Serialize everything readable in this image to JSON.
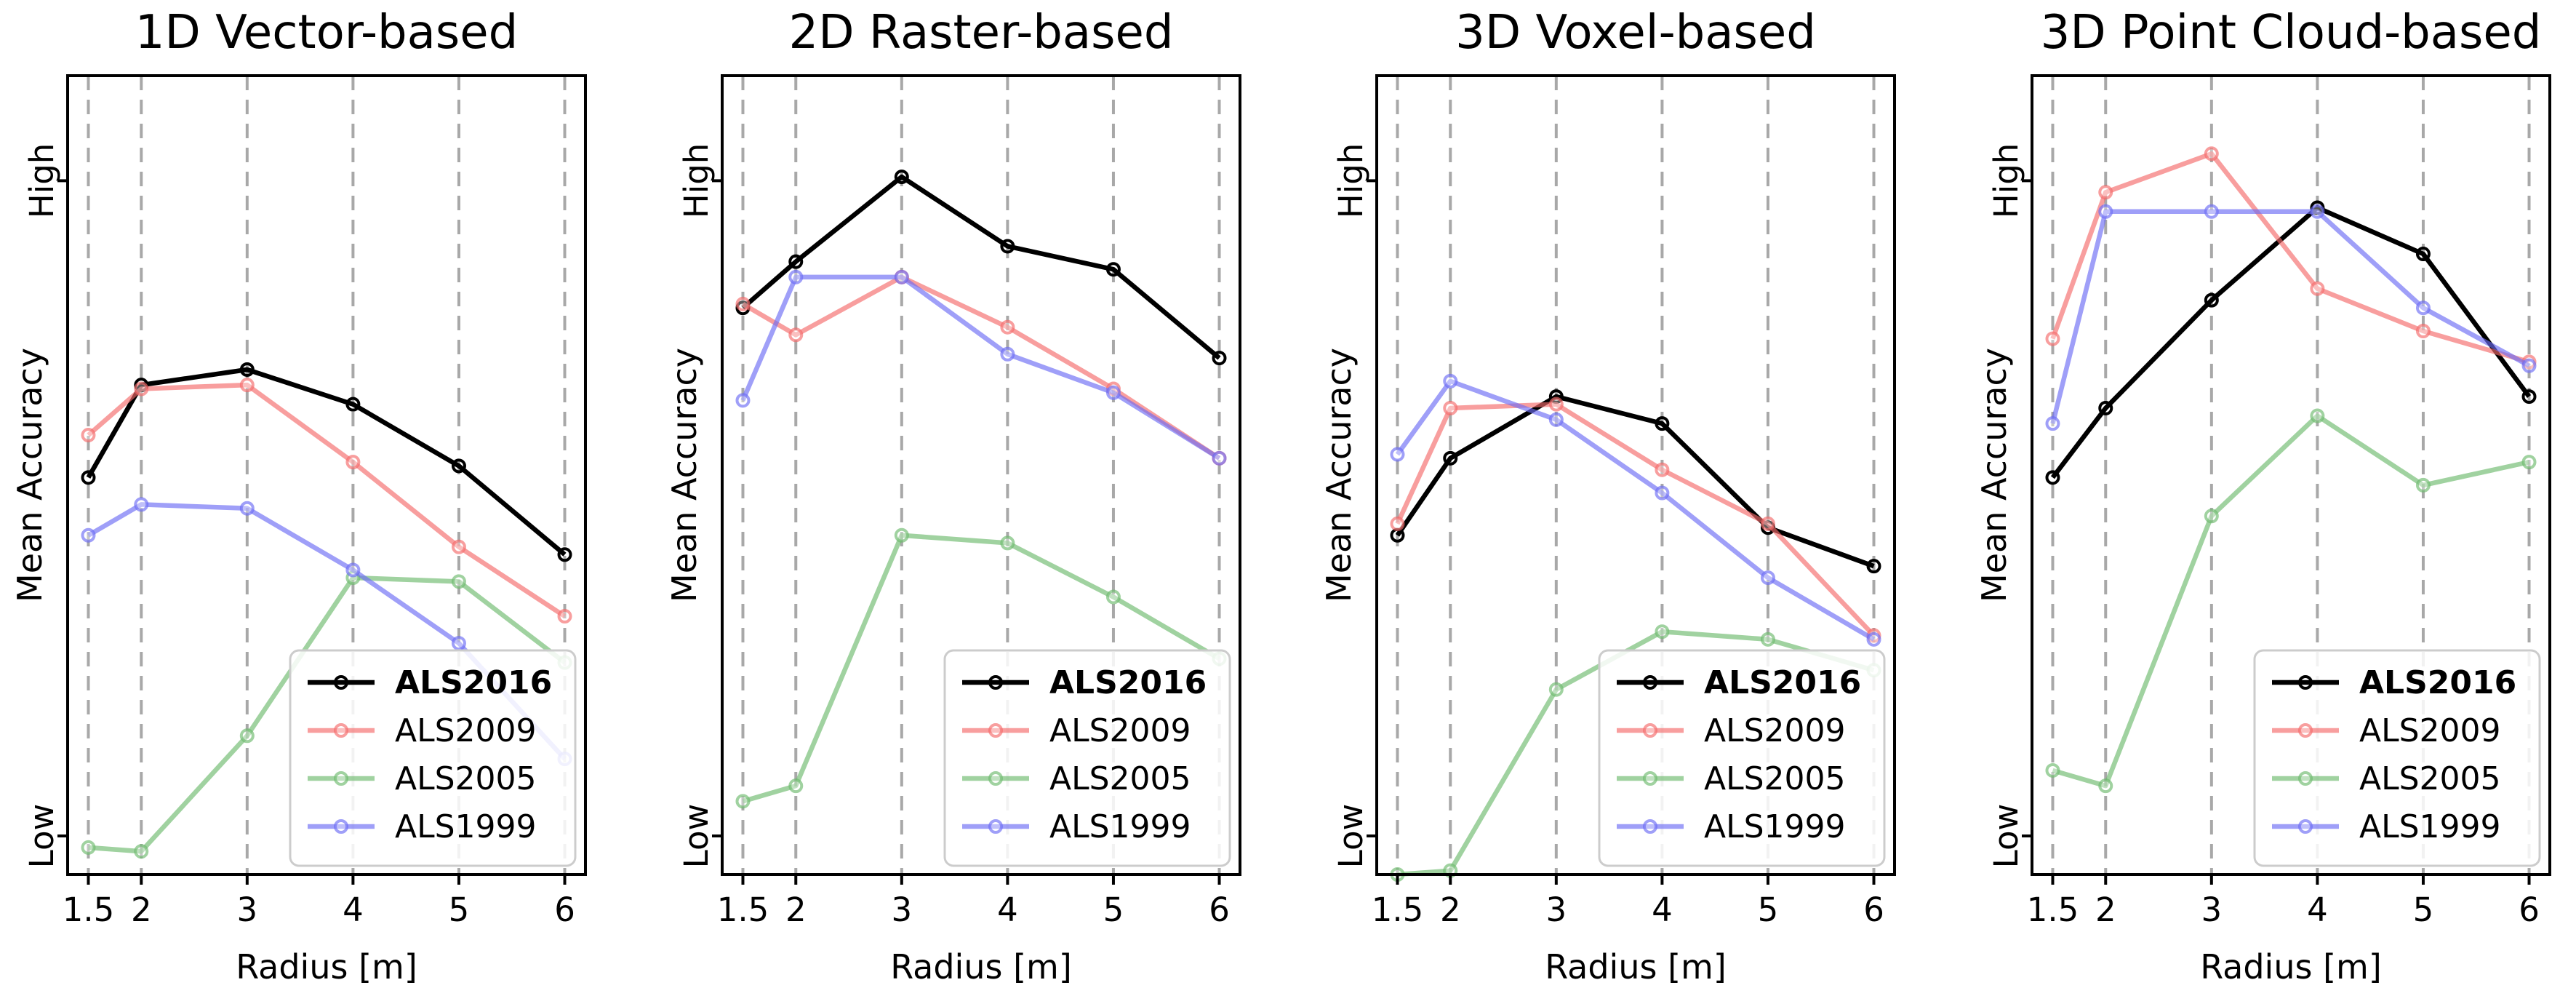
{
  "chart_data": [
    {
      "type": "line",
      "title": "1D Vector-based",
      "xlabel": "Radius [m]",
      "ylabel": "Mean Accuracy",
      "x": [
        1.5,
        2,
        3,
        4,
        5,
        6
      ],
      "x_tick_labels": [
        "1.5",
        "2",
        "3",
        "4",
        "5",
        "6"
      ],
      "y_tick_labels": {
        "high": "High",
        "low": "Low"
      },
      "ylim": [
        0,
        100
      ],
      "grid": "vertical dashed",
      "legend_position": "bottom-right",
      "series": [
        {
          "name": "ALS2016",
          "color": "#000000",
          "values": [
            51.5,
            63.5,
            65.5,
            61.0,
            53.0,
            41.5
          ]
        },
        {
          "name": "ALS2009",
          "color": "#f46a6a",
          "values": [
            57.0,
            63.0,
            63.5,
            53.5,
            42.5,
            33.5
          ]
        },
        {
          "name": "ALS2005",
          "color": "#6dba6d",
          "values": [
            3.5,
            3.0,
            18.0,
            38.5,
            38.0,
            27.5
          ]
        },
        {
          "name": "ALS1999",
          "color": "#6b6bf4",
          "values": [
            44.0,
            48.0,
            47.5,
            39.5,
            30.0,
            15.0
          ]
        }
      ]
    },
    {
      "type": "line",
      "title": "2D Raster-based",
      "xlabel": "Radius [m]",
      "ylabel": "Mean Accuracy",
      "x": [
        1.5,
        2,
        3,
        4,
        5,
        6
      ],
      "x_tick_labels": [
        "1.5",
        "2",
        "3",
        "4",
        "5",
        "6"
      ],
      "y_tick_labels": {
        "high": "High",
        "low": "Low"
      },
      "ylim": [
        0,
        100
      ],
      "grid": "vertical dashed",
      "legend_position": "bottom-right",
      "series": [
        {
          "name": "ALS2016",
          "color": "#000000",
          "values": [
            73.5,
            79.5,
            90.5,
            81.5,
            78.5,
            67.0
          ]
        },
        {
          "name": "ALS2009",
          "color": "#f46a6a",
          "values": [
            74.0,
            70.0,
            77.5,
            71.0,
            63.0,
            54.0
          ]
        },
        {
          "name": "ALS2005",
          "color": "#6dba6d",
          "values": [
            9.5,
            11.5,
            44.0,
            43.0,
            36.0,
            28.0
          ]
        },
        {
          "name": "ALS1999",
          "color": "#6b6bf4",
          "values": [
            61.5,
            77.5,
            77.5,
            67.5,
            62.5,
            54.0
          ]
        }
      ]
    },
    {
      "type": "line",
      "title": "3D Voxel-based",
      "xlabel": "Radius [m]",
      "ylabel": "Mean Accuracy",
      "x": [
        1.5,
        2,
        3,
        4,
        5,
        6
      ],
      "x_tick_labels": [
        "1.5",
        "2",
        "3",
        "4",
        "5",
        "6"
      ],
      "y_tick_labels": {
        "high": "High",
        "low": "Low"
      },
      "ylim": [
        0,
        100
      ],
      "grid": "vertical dashed",
      "legend_position": "bottom-right",
      "series": [
        {
          "name": "ALS2016",
          "color": "#000000",
          "values": [
            44.0,
            54.0,
            62.0,
            58.5,
            45.0,
            40.0
          ]
        },
        {
          "name": "ALS2009",
          "color": "#f46a6a",
          "values": [
            45.5,
            60.5,
            61.0,
            52.5,
            45.5,
            31.0
          ]
        },
        {
          "name": "ALS2005",
          "color": "#6dba6d",
          "values": [
            0.0,
            0.5,
            24.0,
            31.5,
            30.5,
            26.5
          ]
        },
        {
          "name": "ALS1999",
          "color": "#6b6bf4",
          "values": [
            54.5,
            64.0,
            59.0,
            49.5,
            38.5,
            30.5
          ]
        }
      ]
    },
    {
      "type": "line",
      "title": "3D Point Cloud-based",
      "xlabel": "Radius [m]",
      "ylabel": "Mean Accuracy",
      "x": [
        1.5,
        2,
        3,
        4,
        5,
        6
      ],
      "x_tick_labels": [
        "1.5",
        "2",
        "3",
        "4",
        "5",
        "6"
      ],
      "y_tick_labels": {
        "high": "High",
        "low": "Low"
      },
      "ylim": [
        0,
        100
      ],
      "grid": "vertical dashed",
      "legend_position": "bottom-right",
      "series": [
        {
          "name": "ALS2016",
          "color": "#000000",
          "values": [
            51.5,
            60.5,
            74.5,
            86.5,
            80.5,
            62.0
          ]
        },
        {
          "name": "ALS2009",
          "color": "#f46a6a",
          "values": [
            69.5,
            88.5,
            93.5,
            76.0,
            70.5,
            66.5
          ]
        },
        {
          "name": "ALS2005",
          "color": "#6dba6d",
          "values": [
            13.5,
            11.5,
            46.5,
            59.5,
            50.5,
            53.5
          ]
        },
        {
          "name": "ALS1999",
          "color": "#6b6bf4",
          "values": [
            58.5,
            86.0,
            86.0,
            86.0,
            73.5,
            66.0
          ]
        }
      ]
    }
  ]
}
